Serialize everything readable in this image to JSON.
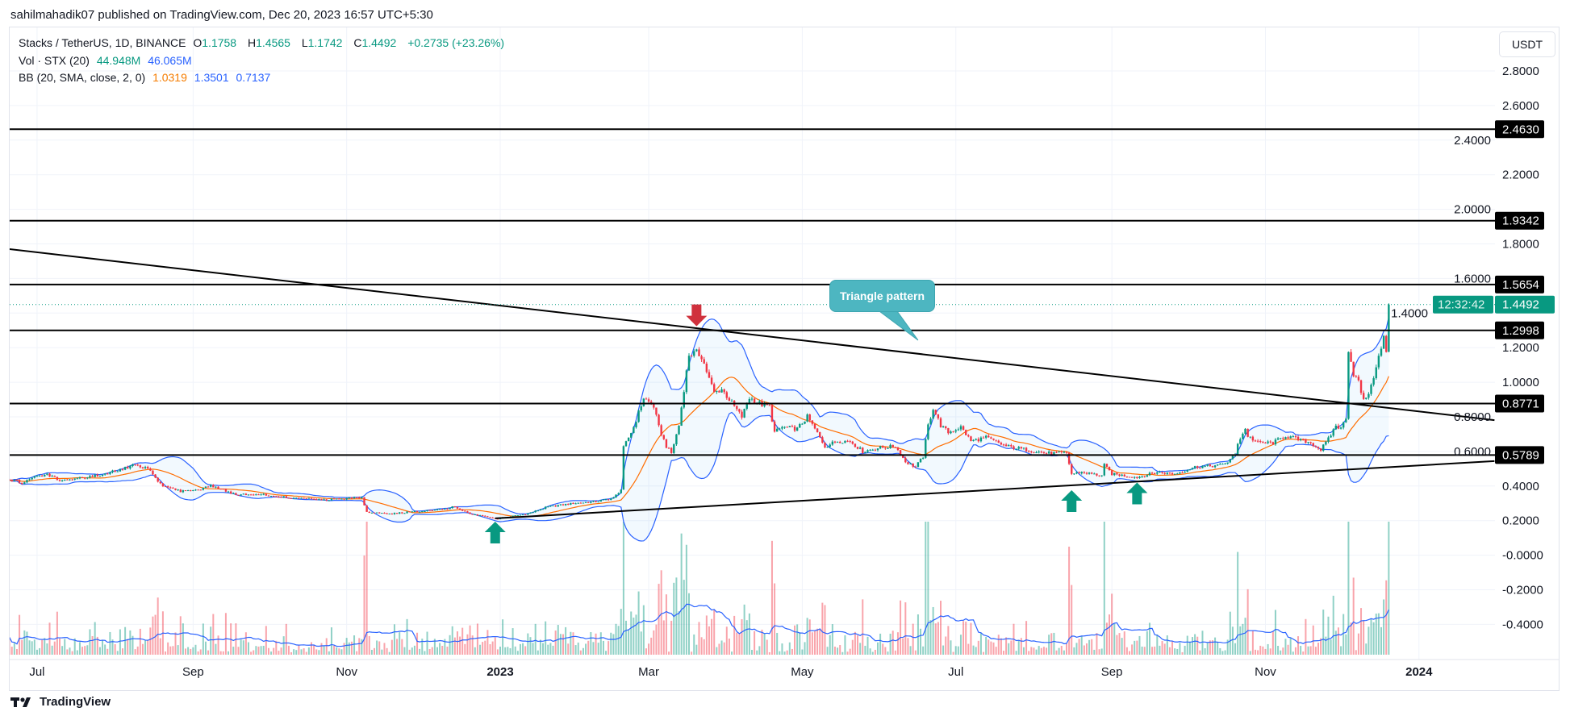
{
  "header": {
    "published": "sahilmahadik07 published on TradingView.com, Dec 20, 2023 16:57 UTC+5:30"
  },
  "legend": {
    "symbol": "Stacks / TetherUS, 1D, BINANCE",
    "o_label": "O",
    "o": "1.1758",
    "h_label": "H",
    "h": "1.4565",
    "l_label": "L",
    "l": "1.1742",
    "c_label": "C",
    "c": "1.4492",
    "change": "+0.2735 (+23.26%)",
    "vol_label": "Vol · STX (20)",
    "vol1": "44.948M",
    "vol2": "46.065M",
    "bb_label": "BB (20, SMA, close, 2, 0)",
    "bb_basis": "1.0319",
    "bb_upper": "1.3501",
    "bb_lower": "0.7137"
  },
  "currency_button": "USDT",
  "footer": {
    "brand": "TradingView"
  },
  "colors": {
    "up": "#089981",
    "down": "#f23645",
    "bb": "#2962ff",
    "basis": "#ff6d00",
    "level": "#000000",
    "callout": "#4db6c1",
    "arrow_down": "#d0313d",
    "arrow_up": "#089981"
  },
  "chart_data": {
    "type": "candlestick",
    "title": "Stacks / TetherUS, 1D, BINANCE",
    "ylim": [
      -0.4,
      2.8
    ],
    "y_ticks": [
      "2.8000",
      "2.6000",
      "2.4000",
      "2.2000",
      "2.0000",
      "1.8000",
      "1.6000",
      "1.4000",
      "1.2000",
      "1.0000",
      "0.8000",
      "0.6000",
      "0.4000",
      "0.2000",
      "-0.0000",
      "-0.2000",
      "-0.4000"
    ],
    "x_ticks": [
      {
        "label": "Jul",
        "day": -184
      },
      {
        "label": "Sep",
        "day": -122
      },
      {
        "label": "Nov",
        "day": -61
      },
      {
        "label": "2023",
        "day": 0
      },
      {
        "label": "Mar",
        "day": 59
      },
      {
        "label": "May",
        "day": 120
      },
      {
        "label": "Jul",
        "day": 181
      },
      {
        "label": "Sep",
        "day": 243
      },
      {
        "label": "Nov",
        "day": 304
      },
      {
        "label": "2024",
        "day": 365
      }
    ],
    "levels": [
      "2.4630",
      "1.9342",
      "1.5654",
      "1.2998",
      "0.8771",
      "0.5789"
    ],
    "current_price": {
      "value": "1.4492",
      "countdown": "12:32:42"
    },
    "trendlines": [
      {
        "name": "descending",
        "from": [
          -195,
          1.77
        ],
        "to": [
          395,
          0.781
        ]
      },
      {
        "name": "ascending",
        "from": [
          -2,
          0.213
        ],
        "to": [
          395,
          0.544
        ]
      }
    ],
    "markers": [
      {
        "type": "down",
        "day": 78,
        "price": 1.45
      },
      {
        "type": "up",
        "day": -2,
        "price": 0.194
      },
      {
        "type": "up",
        "day": 227,
        "price": 0.376
      },
      {
        "type": "up",
        "day": 253,
        "price": 0.42
      }
    ],
    "annotation": {
      "text": "Triangle pattern",
      "day": 166,
      "price": 1.243
    },
    "last_candle": {
      "o": 1.1758,
      "h": 1.4565,
      "l": 1.1742,
      "c": 1.4492
    },
    "close_anchors": [
      [
        -195,
        0.44
      ],
      [
        -190,
        0.42
      ],
      [
        -185,
        0.45
      ],
      [
        -180,
        0.47
      ],
      [
        -175,
        0.43
      ],
      [
        -170,
        0.44
      ],
      [
        -160,
        0.46
      ],
      [
        -150,
        0.5
      ],
      [
        -146,
        0.52
      ],
      [
        -140,
        0.5
      ],
      [
        -135,
        0.41
      ],
      [
        -127,
        0.37
      ],
      [
        -120,
        0.38
      ],
      [
        -115,
        0.4
      ],
      [
        -110,
        0.38
      ],
      [
        -105,
        0.35
      ],
      [
        -95,
        0.35
      ],
      [
        -82,
        0.33
      ],
      [
        -70,
        0.32
      ],
      [
        -59,
        0.33
      ],
      [
        -55,
        0.33
      ],
      [
        -53,
        0.25
      ],
      [
        -43,
        0.24
      ],
      [
        -36,
        0.25
      ],
      [
        -21,
        0.27
      ],
      [
        -19,
        0.28
      ],
      [
        -12,
        0.24
      ],
      [
        -2,
        0.21
      ],
      [
        11,
        0.24
      ],
      [
        19,
        0.28
      ],
      [
        29,
        0.3
      ],
      [
        38,
        0.31
      ],
      [
        45,
        0.33
      ],
      [
        48,
        0.38
      ],
      [
        49,
        0.62
      ],
      [
        53,
        0.74
      ],
      [
        57,
        0.91
      ],
      [
        61,
        0.86
      ],
      [
        63,
        0.74
      ],
      [
        66,
        0.63
      ],
      [
        68,
        0.59
      ],
      [
        71,
        0.75
      ],
      [
        73,
        0.96
      ],
      [
        75,
        1.16
      ],
      [
        78,
        1.17
      ],
      [
        80,
        1.15
      ],
      [
        83,
        1.02
      ],
      [
        85,
        0.94
      ],
      [
        88,
        0.96
      ],
      [
        92,
        0.88
      ],
      [
        96,
        0.8
      ],
      [
        99,
        0.91
      ],
      [
        104,
        0.87
      ],
      [
        107,
        0.86
      ],
      [
        109,
        0.71
      ],
      [
        112,
        0.74
      ],
      [
        118,
        0.73
      ],
      [
        122,
        0.8
      ],
      [
        125,
        0.73
      ],
      [
        129,
        0.63
      ],
      [
        134,
        0.66
      ],
      [
        139,
        0.66
      ],
      [
        144,
        0.6
      ],
      [
        150,
        0.62
      ],
      [
        157,
        0.63
      ],
      [
        161,
        0.54
      ],
      [
        165,
        0.51
      ],
      [
        168,
        0.57
      ],
      [
        170,
        0.75
      ],
      [
        172,
        0.85
      ],
      [
        175,
        0.75
      ],
      [
        178,
        0.71
      ],
      [
        183,
        0.74
      ],
      [
        187,
        0.66
      ],
      [
        193,
        0.68
      ],
      [
        201,
        0.63
      ],
      [
        209,
        0.61
      ],
      [
        217,
        0.59
      ],
      [
        225,
        0.59
      ],
      [
        227,
        0.47
      ],
      [
        231,
        0.48
      ],
      [
        239,
        0.46
      ],
      [
        240,
        0.52
      ],
      [
        243,
        0.47
      ],
      [
        253,
        0.45
      ],
      [
        261,
        0.48
      ],
      [
        268,
        0.47
      ],
      [
        276,
        0.51
      ],
      [
        286,
        0.52
      ],
      [
        289,
        0.54
      ],
      [
        292,
        0.58
      ],
      [
        293,
        0.65
      ],
      [
        296,
        0.73
      ],
      [
        297,
        0.69
      ],
      [
        301,
        0.65
      ],
      [
        307,
        0.65
      ],
      [
        312,
        0.69
      ],
      [
        317,
        0.67
      ],
      [
        322,
        0.65
      ],
      [
        326,
        0.61
      ],
      [
        329,
        0.67
      ],
      [
        332,
        0.75
      ],
      [
        334,
        0.73
      ],
      [
        336,
        0.8
      ],
      [
        337,
        1.19
      ],
      [
        339,
        1.05
      ],
      [
        341,
        1.0
      ],
      [
        343,
        0.89
      ],
      [
        346,
        0.97
      ],
      [
        348,
        1.1
      ],
      [
        350,
        1.19
      ],
      [
        351,
        1.26
      ],
      [
        352,
        1.1758
      ],
      [
        353,
        1.4492
      ]
    ]
  }
}
